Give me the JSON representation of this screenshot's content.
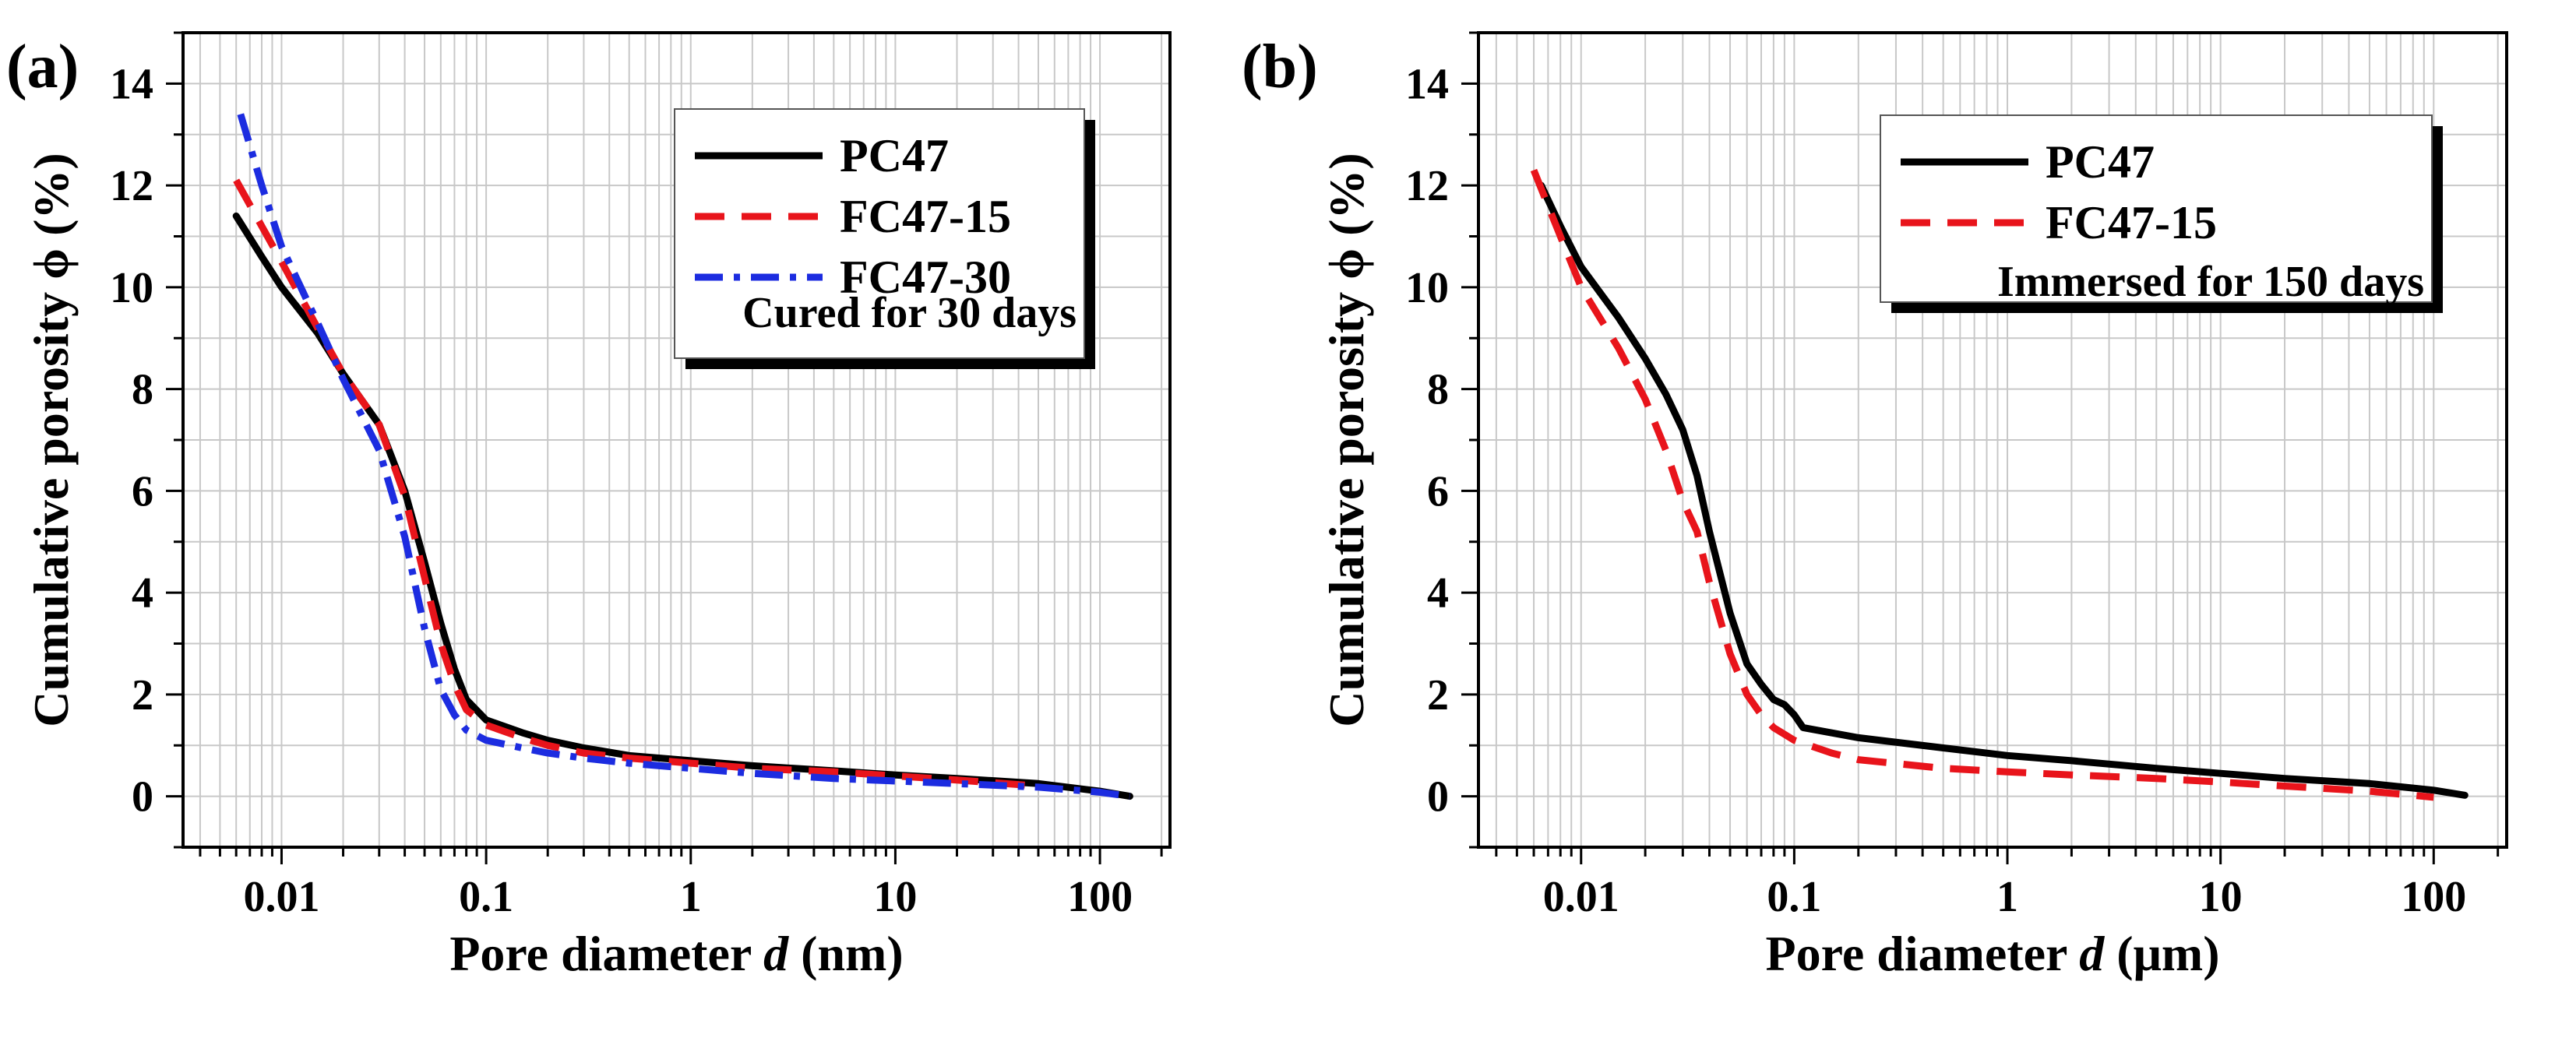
{
  "chart_data": [
    {
      "type": "line",
      "panel_label": "(a)",
      "xlabel_prefix": "Pore diameter ",
      "xlabel_var": "d",
      "xlabel_unit": " (nm)",
      "ylabel": "Cumulative porosity  ϕ (%)",
      "x_scale": "log",
      "xlim": [
        0.0033,
        220
      ],
      "ylim": [
        -1,
        15
      ],
      "x_ticks": [
        0.01,
        0.1,
        1,
        10,
        100
      ],
      "x_tick_labels": [
        "0.01",
        "0.1",
        "1",
        "10",
        "100"
      ],
      "y_ticks": [
        0,
        2,
        4,
        6,
        8,
        10,
        12,
        14
      ],
      "y_tick_labels": [
        "0",
        "2",
        "4",
        "6",
        "8",
        "10",
        "12",
        "14"
      ],
      "grid": true,
      "legend_position": "top-right",
      "annotation": "Cured for 30 days",
      "series": [
        {
          "name": "PC47",
          "color": "#000000",
          "dash": "solid",
          "x": [
            0.006,
            0.008,
            0.01,
            0.015,
            0.02,
            0.03,
            0.04,
            0.05,
            0.06,
            0.07,
            0.08,
            0.1,
            0.15,
            0.2,
            0.3,
            0.5,
            1,
            2,
            5,
            10,
            20,
            50,
            100,
            140
          ],
          "y": [
            11.4,
            10.6,
            10.0,
            9.1,
            8.3,
            7.3,
            6.0,
            4.6,
            3.4,
            2.5,
            1.9,
            1.5,
            1.25,
            1.1,
            0.95,
            0.8,
            0.7,
            0.6,
            0.5,
            0.42,
            0.35,
            0.25,
            0.1,
            0.0
          ]
        },
        {
          "name": "FC47-15",
          "color": "#e8141b",
          "dash": "long-dash",
          "x": [
            0.006,
            0.008,
            0.01,
            0.015,
            0.02,
            0.03,
            0.04,
            0.05,
            0.06,
            0.07,
            0.08,
            0.1,
            0.15,
            0.2,
            0.3,
            0.5,
            1,
            2,
            5,
            10,
            20,
            50
          ],
          "y": [
            12.1,
            11.2,
            10.5,
            9.2,
            8.3,
            7.3,
            5.9,
            4.3,
            3.0,
            2.2,
            1.7,
            1.4,
            1.15,
            1.0,
            0.85,
            0.75,
            0.65,
            0.55,
            0.48,
            0.4,
            0.32,
            0.2
          ]
        },
        {
          "name": "FC47-30",
          "color": "#1c2ce0",
          "dash": "dash-dot",
          "x": [
            0.0063,
            0.008,
            0.01,
            0.015,
            0.02,
            0.03,
            0.04,
            0.05,
            0.06,
            0.07,
            0.08,
            0.1,
            0.15,
            0.2,
            0.3,
            0.5,
            1,
            2,
            5,
            10,
            20,
            50,
            100,
            140
          ],
          "y": [
            13.4,
            12.0,
            10.8,
            9.3,
            8.2,
            6.8,
            5.1,
            3.3,
            2.1,
            1.6,
            1.3,
            1.1,
            0.95,
            0.85,
            0.75,
            0.65,
            0.55,
            0.45,
            0.35,
            0.3,
            0.25,
            0.18,
            0.08,
            0.0
          ]
        }
      ]
    },
    {
      "type": "line",
      "panel_label": "(b)",
      "xlabel_prefix": "Pore diameter ",
      "xlabel_var": "d",
      "xlabel_unit": " (μm)",
      "ylabel": "Cumulative porosity  ϕ (%)",
      "x_scale": "log",
      "xlim": [
        0.0033,
        220
      ],
      "ylim": [
        -1,
        15
      ],
      "x_ticks": [
        0.01,
        0.1,
        1,
        10,
        100
      ],
      "x_tick_labels": [
        "0.01",
        "0.1",
        "1",
        "10",
        "100"
      ],
      "y_ticks": [
        0,
        2,
        4,
        6,
        8,
        10,
        12,
        14
      ],
      "y_tick_labels": [
        "0",
        "2",
        "4",
        "6",
        "8",
        "10",
        "12",
        "14"
      ],
      "grid": true,
      "legend_position": "top-right",
      "annotation": "Immersed for 150 days",
      "series": [
        {
          "name": "PC47",
          "color": "#000000",
          "dash": "solid",
          "x": [
            0.0065,
            0.008,
            0.01,
            0.015,
            0.02,
            0.025,
            0.03,
            0.035,
            0.04,
            0.05,
            0.06,
            0.07,
            0.08,
            0.09,
            0.1,
            0.11,
            0.2,
            0.5,
            1,
            2,
            5,
            10,
            20,
            50,
            100,
            140
          ],
          "y": [
            12.0,
            11.2,
            10.4,
            9.4,
            8.6,
            7.9,
            7.2,
            6.3,
            5.2,
            3.6,
            2.6,
            2.2,
            1.9,
            1.8,
            1.6,
            1.35,
            1.15,
            0.95,
            0.8,
            0.7,
            0.55,
            0.45,
            0.35,
            0.25,
            0.12,
            0.02
          ]
        },
        {
          "name": "FC47-15",
          "color": "#e8141b",
          "dash": "long-dash",
          "x": [
            0.006,
            0.008,
            0.01,
            0.015,
            0.02,
            0.025,
            0.03,
            0.035,
            0.04,
            0.05,
            0.06,
            0.07,
            0.08,
            0.1,
            0.15,
            0.2,
            0.5,
            1,
            2,
            5,
            10,
            20,
            50,
            100
          ],
          "y": [
            12.3,
            11.0,
            10.0,
            8.8,
            7.8,
            6.8,
            5.8,
            5.2,
            4.2,
            2.8,
            2.0,
            1.6,
            1.35,
            1.1,
            0.85,
            0.72,
            0.55,
            0.48,
            0.42,
            0.35,
            0.28,
            0.2,
            0.1,
            -0.02
          ]
        }
      ]
    }
  ]
}
